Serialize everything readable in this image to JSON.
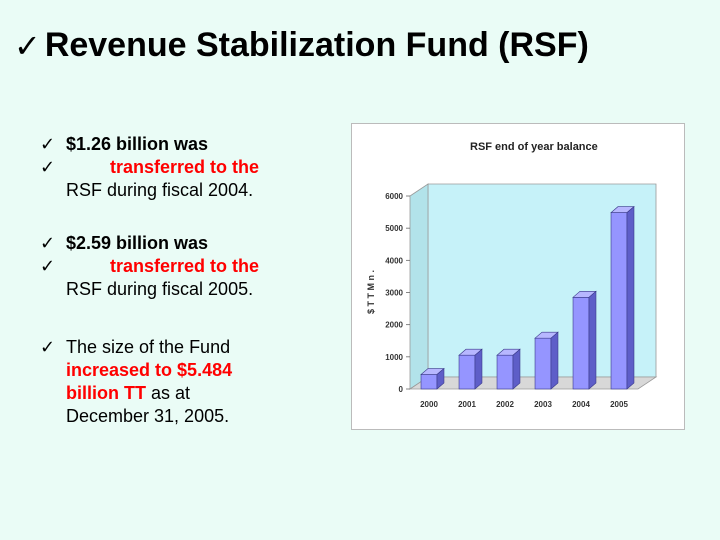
{
  "slide": {
    "check_glyph": "✓",
    "title": "Revenue Stabilization Fund (RSF)"
  },
  "bullets": [
    {
      "line1": "$1.26 billion was",
      "line2": "transferred to the",
      "line3": "RSF during fiscal 2004."
    },
    {
      "line1": "$2.59 billion was",
      "line2": "transferred to the",
      "line3": "RSF during fiscal 2005."
    },
    {
      "line1": "The size of the Fund",
      "line2": "increased to $5.484",
      "line3_red": "billion TT",
      "line3_black": " as at",
      "line4": "December 31, 2005."
    }
  ],
  "colors": {
    "background": "#eafcf6",
    "accent_red": "#ff0000",
    "bar_front": "#9595ff",
    "plot_back": "#c6f2f9"
  },
  "chart_data": {
    "type": "bar",
    "title": "RSF end of year balance",
    "ylabel": "$ T T M n .",
    "xlabel": "",
    "categories": [
      "2000",
      "2001",
      "2002",
      "2003",
      "2004",
      "2005"
    ],
    "values": [
      450,
      1050,
      1050,
      1580,
      2850,
      5484
    ],
    "ylim": [
      0,
      6000
    ],
    "yticks": [
      "0",
      "1000",
      "2000",
      "3000",
      "4000",
      "5000",
      "6000"
    ],
    "grid": false,
    "legend": "none"
  }
}
